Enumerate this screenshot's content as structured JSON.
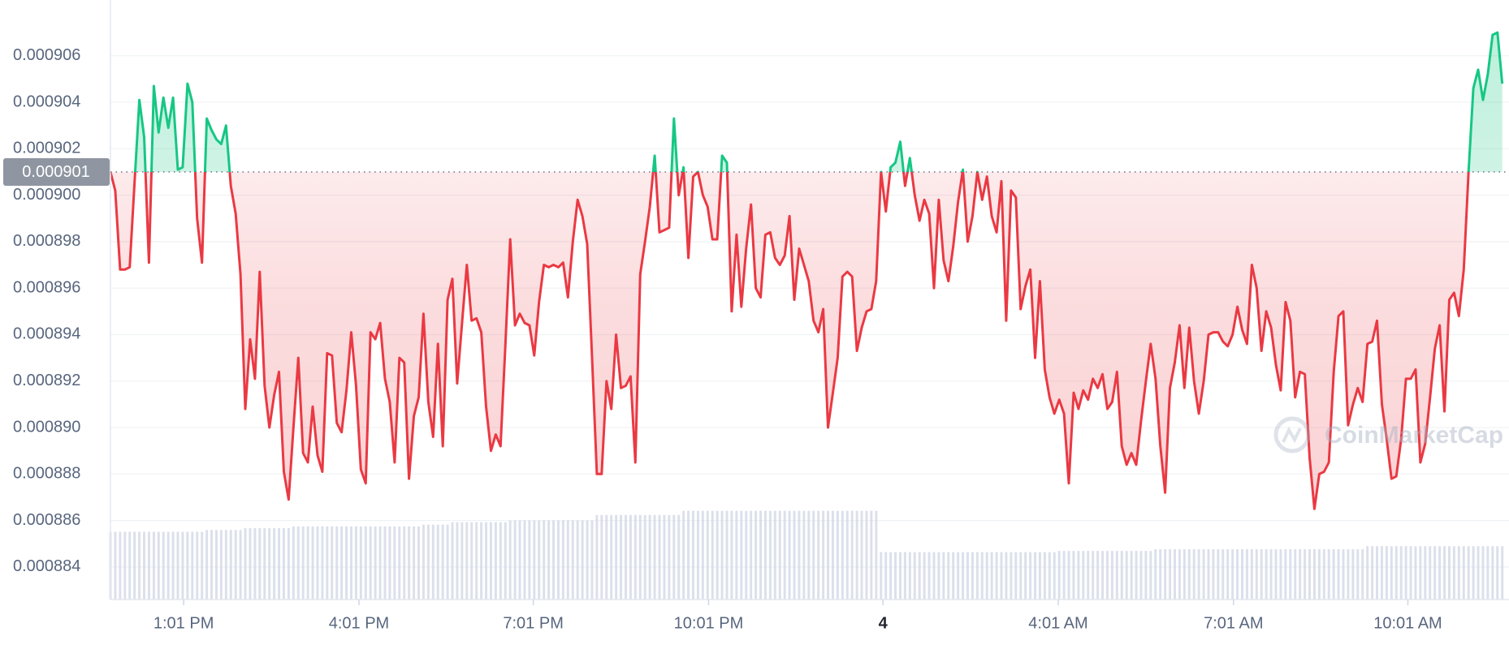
{
  "chart_data": {
    "type": "line",
    "xlim": [
      0,
      290.4
    ],
    "ylim": [
      0.0008826,
      0.0009084
    ],
    "y2lim": [
      0,
      100
    ],
    "yticks": [
      0.000884,
      0.000886,
      0.000888,
      {
        "value": 0.00089,
        "label": "0.000890"
      },
      0.000892,
      0.000894,
      0.000896,
      0.000898,
      {
        "value": 0.0009,
        "label": "0.000900"
      },
      0.000902,
      0.000904,
      0.000906
    ],
    "xticks": [
      {
        "value": 15.2,
        "label": "1:01 PM"
      },
      {
        "value": 51.6,
        "label": "4:01 PM"
      },
      {
        "value": 87.8,
        "label": "7:01 PM"
      },
      {
        "value": 124.2,
        "label": "10:01 PM"
      },
      {
        "value": 160.4,
        "label": "4"
      },
      {
        "value": 196.8,
        "label": "4:01 AM"
      },
      {
        "value": 233.2,
        "label": "7:01 AM"
      },
      {
        "value": 269.4,
        "label": "10:01 AM"
      }
    ],
    "baseline": 0.000901,
    "grid": true,
    "up_color": "#16c784",
    "down_color": "#ea3943",
    "watermark": "CoinMarketCap",
    "series": [
      {
        "color": "#ea3943",
        "values": [
          0.000901,
          0.0009002,
          0.0008968,
          0.0008968,
          0.0008969,
          0.0009005,
          0.0009041,
          0.0009025,
          0.0008971,
          0.0009047,
          0.0009027,
          0.0009042,
          0.0009029,
          0.0009042,
          0.0009011,
          0.0009012,
          0.0009048,
          0.000904,
          0.000899,
          0.0008971,
          0.0009033,
          0.0009028,
          0.0009024,
          0.0009022,
          0.000903,
          0.0009004,
          0.0008992,
          0.0008966,
          0.0008908,
          0.0008938,
          0.0008921,
          0.0008967,
          0.0008918,
          0.00089,
          0.0008914,
          0.0008924,
          0.0008881,
          0.0008869,
          0.00089,
          0.000893,
          0.0008889,
          0.0008885,
          0.0008909,
          0.0008888,
          0.0008881,
          0.0008932,
          0.0008931,
          0.0008902,
          0.0008898,
          0.0008916,
          0.0008941,
          0.0008918,
          0.0008882,
          0.0008876,
          0.0008941,
          0.0008938,
          0.0008945,
          0.0008921,
          0.0008911,
          0.0008885,
          0.000893,
          0.0008928,
          0.0008878,
          0.0008905,
          0.0008913,
          0.0008949,
          0.0008911,
          0.0008896,
          0.0008936,
          0.0008892,
          0.0008955,
          0.0008964,
          0.0008919,
          0.0008945,
          0.000897,
          0.0008946,
          0.0008947,
          0.0008941,
          0.0008909,
          0.000889,
          0.0008897,
          0.0008892,
          0.0008935,
          0.0008981,
          0.0008944,
          0.0008949,
          0.0008945,
          0.0008944,
          0.0008931,
          0.0008954,
          0.000897,
          0.0008969,
          0.000897,
          0.0008969,
          0.0008971,
          0.0008956,
          0.000898,
          0.0008998,
          0.0008991,
          0.0008979,
          0.000893,
          0.000888,
          0.000888,
          0.000892,
          0.0008908,
          0.000894,
          0.0008917,
          0.0008918,
          0.0008922,
          0.0008885,
          0.0008966,
          0.000898,
          0.0008995,
          0.0009017,
          0.0008984,
          0.0008985,
          0.0008986,
          0.0009033,
          0.0009,
          0.0009012,
          0.0008973,
          0.0009008,
          0.000901,
          0.0009,
          0.0008995,
          0.0008981,
          0.0008981,
          0.0009017,
          0.0009014,
          0.000895,
          0.0008983,
          0.0008952,
          0.0008977,
          0.0008996,
          0.000896,
          0.0008956,
          0.0008983,
          0.0008984,
          0.0008973,
          0.000897,
          0.0008974,
          0.0008991,
          0.0008955,
          0.0008977,
          0.000897,
          0.0008963,
          0.0008946,
          0.0008941,
          0.0008951,
          0.00089,
          0.0008915,
          0.000893,
          0.0008965,
          0.0008967,
          0.0008965,
          0.0008933,
          0.0008943,
          0.000895,
          0.0008951,
          0.0008963,
          0.000901,
          0.0008993,
          0.0009012,
          0.0009014,
          0.0009023,
          0.0009004,
          0.0009016,
          0.0009,
          0.0008989,
          0.0008998,
          0.0008992,
          0.000896,
          0.0008998,
          0.0008972,
          0.0008963,
          0.0008978,
          0.0008997,
          0.0009011,
          0.000898,
          0.0008991,
          0.000901,
          0.0008998,
          0.0009008,
          0.0008991,
          0.0008984,
          0.0009006,
          0.0008946,
          0.0009002,
          0.0008999,
          0.0008951,
          0.0008961,
          0.0008968,
          0.000893,
          0.0008963,
          0.0008925,
          0.0008913,
          0.0008906,
          0.0008912,
          0.0008906,
          0.0008876,
          0.0008915,
          0.0008908,
          0.0008916,
          0.0008912,
          0.0008921,
          0.0008917,
          0.0008923,
          0.0008908,
          0.0008911,
          0.0008924,
          0.0008892,
          0.0008884,
          0.0008889,
          0.0008884,
          0.0008903,
          0.000892,
          0.0008936,
          0.0008921,
          0.0008892,
          0.0008872,
          0.0008917,
          0.0008928,
          0.0008944,
          0.0008917,
          0.0008943,
          0.000892,
          0.0008906,
          0.000892,
          0.000894,
          0.0008941,
          0.0008941,
          0.0008937,
          0.0008935,
          0.000894,
          0.0008952,
          0.0008942,
          0.0008936,
          0.000897,
          0.000896,
          0.0008933,
          0.000895,
          0.0008943,
          0.0008927,
          0.0008916,
          0.0008954,
          0.0008946,
          0.0008913,
          0.0008924,
          0.0008923,
          0.0008887,
          0.0008865,
          0.000888,
          0.0008881,
          0.0008885,
          0.0008924,
          0.0008948,
          0.000895,
          0.0008901,
          0.000891,
          0.0008917,
          0.0008911,
          0.0008936,
          0.0008937,
          0.0008946,
          0.000891,
          0.0008895,
          0.0008878,
          0.0008879,
          0.0008895,
          0.0008921,
          0.0008921,
          0.0008925,
          0.0008885,
          0.0008893,
          0.0008913,
          0.0008934,
          0.0008944,
          0.0008907,
          0.0008955,
          0.0008958,
          0.0008948,
          0.0008968,
          0.000901,
          0.0009046,
          0.0009054,
          0.0009041,
          0.0009052,
          0.0009069,
          0.000907,
          0.0009048
        ]
      },
      {
        "type": "bar",
        "axis": "y2",
        "color": "#cfd6e4",
        "values": [
          11.3,
          11.3,
          11.3,
          11.3,
          11.3,
          11.3,
          11.3,
          11.3,
          11.3,
          11.3,
          11.3,
          11.3,
          11.3,
          11.3,
          11.3,
          11.3,
          11.3,
          11.3,
          11.3,
          11.3,
          11.6,
          11.6,
          11.6,
          11.6,
          11.6,
          11.6,
          11.6,
          11.6,
          11.9,
          11.9,
          11.9,
          11.9,
          11.9,
          11.9,
          11.9,
          11.9,
          11.9,
          11.9,
          12.2,
          12.2,
          12.2,
          12.2,
          12.2,
          12.2,
          12.2,
          12.2,
          12.2,
          12.2,
          12.2,
          12.2,
          12.2,
          12.2,
          12.2,
          12.2,
          12.2,
          12.2,
          12.2,
          12.2,
          12.2,
          12.2,
          12.2,
          12.2,
          12.2,
          12.2,
          12.2,
          12.5,
          12.5,
          12.5,
          12.5,
          12.5,
          12.5,
          12.9,
          12.9,
          12.9,
          12.9,
          12.9,
          12.9,
          12.9,
          12.9,
          12.9,
          12.9,
          12.9,
          12.9,
          13.2,
          13.2,
          13.2,
          13.2,
          13.2,
          13.2,
          13.2,
          13.2,
          13.2,
          13.2,
          13.2,
          13.2,
          13.2,
          13.2,
          13.2,
          13.2,
          13.2,
          13.2,
          14.1,
          14.1,
          14.1,
          14.1,
          14.1,
          14.1,
          14.1,
          14.1,
          14.1,
          14.1,
          14.1,
          14.1,
          14.1,
          14.1,
          14.1,
          14.1,
          14.1,
          14.1,
          14.8,
          14.8,
          14.8,
          14.8,
          14.8,
          14.8,
          14.8,
          14.8,
          14.8,
          14.8,
          14.8,
          14.8,
          14.8,
          14.8,
          14.8,
          14.8,
          14.8,
          14.8,
          14.8,
          14.8,
          14.8,
          14.8,
          14.8,
          14.8,
          14.8,
          14.8,
          14.8,
          14.8,
          14.8,
          14.8,
          14.8,
          14.8,
          14.8,
          14.8,
          14.8,
          14.8,
          14.8,
          14.8,
          14.8,
          14.8,
          14.8,
          7.9,
          7.9,
          7.9,
          7.9,
          7.9,
          7.9,
          7.9,
          7.9,
          7.9,
          7.9,
          7.9,
          7.9,
          7.9,
          7.9,
          7.9,
          7.9,
          7.9,
          7.9,
          7.9,
          7.9,
          7.9,
          7.9,
          7.9,
          7.9,
          7.9,
          7.9,
          7.9,
          7.9,
          7.9,
          7.9,
          7.9,
          7.9,
          7.9,
          7.9,
          7.9,
          7.9,
          7.9,
          8.1,
          8.1,
          8.1,
          8.1,
          8.1,
          8.1,
          8.1,
          8.1,
          8.1,
          8.1,
          8.1,
          8.1,
          8.1,
          8.1,
          8.1,
          8.1,
          8.1,
          8.1,
          8.1,
          8.1,
          8.4,
          8.4,
          8.4,
          8.4,
          8.4,
          8.4,
          8.4,
          8.4,
          8.4,
          8.4,
          8.4,
          8.4,
          8.4,
          8.4,
          8.4,
          8.4,
          8.4,
          8.4,
          8.4,
          8.4,
          8.4,
          8.4,
          8.4,
          8.4,
          8.4,
          8.4,
          8.4,
          8.4,
          8.4,
          8.4,
          8.4,
          8.4,
          8.4,
          8.4,
          8.4,
          8.4,
          8.4,
          8.4,
          8.4,
          8.4,
          8.4,
          8.4,
          8.4,
          8.4,
          8.9,
          8.9,
          8.9,
          8.9,
          8.9,
          8.9,
          8.9,
          8.9,
          8.9,
          8.9,
          8.9,
          8.9,
          8.9,
          8.9,
          8.9,
          8.9,
          8.9,
          8.9,
          8.9,
          8.9,
          8.9,
          8.9,
          8.9,
          8.9,
          8.9,
          8.9,
          8.9,
          8.9,
          8.9
        ]
      }
    ]
  }
}
